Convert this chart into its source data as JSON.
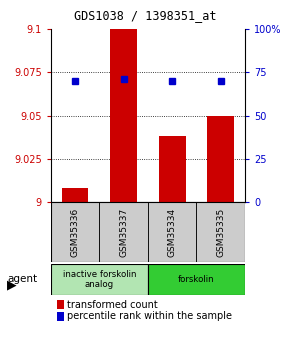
{
  "title": "GDS1038 / 1398351_at",
  "samples": [
    "GSM35336",
    "GSM35337",
    "GSM35334",
    "GSM35335"
  ],
  "bar_values": [
    9.008,
    9.1,
    9.038,
    9.05
  ],
  "percentile_values": [
    70,
    71,
    70,
    70
  ],
  "ylim_left": [
    9.0,
    9.1
  ],
  "ylim_right": [
    0,
    100
  ],
  "yticks_left": [
    9.0,
    9.025,
    9.05,
    9.075,
    9.1
  ],
  "ytick_labels_left": [
    "9",
    "9.025",
    "9.05",
    "9.075",
    "9.1"
  ],
  "yticks_right": [
    0,
    25,
    50,
    75,
    100
  ],
  "ytick_labels_right": [
    "0",
    "25",
    "50",
    "75",
    "100%"
  ],
  "bar_color": "#cc0000",
  "dot_color": "#0000cc",
  "agent_groups": [
    {
      "label": "inactive forskolin\nanalog",
      "samples": [
        0,
        1
      ],
      "color": "#b2e5b2"
    },
    {
      "label": "forskolin",
      "samples": [
        2,
        3
      ],
      "color": "#33cc33"
    }
  ],
  "legend_bar_label": "transformed count",
  "legend_dot_label": "percentile rank within the sample",
  "sample_box_color": "#cccccc",
  "title_fontsize": 8.5,
  "tick_fontsize": 7,
  "legend_fontsize": 7
}
